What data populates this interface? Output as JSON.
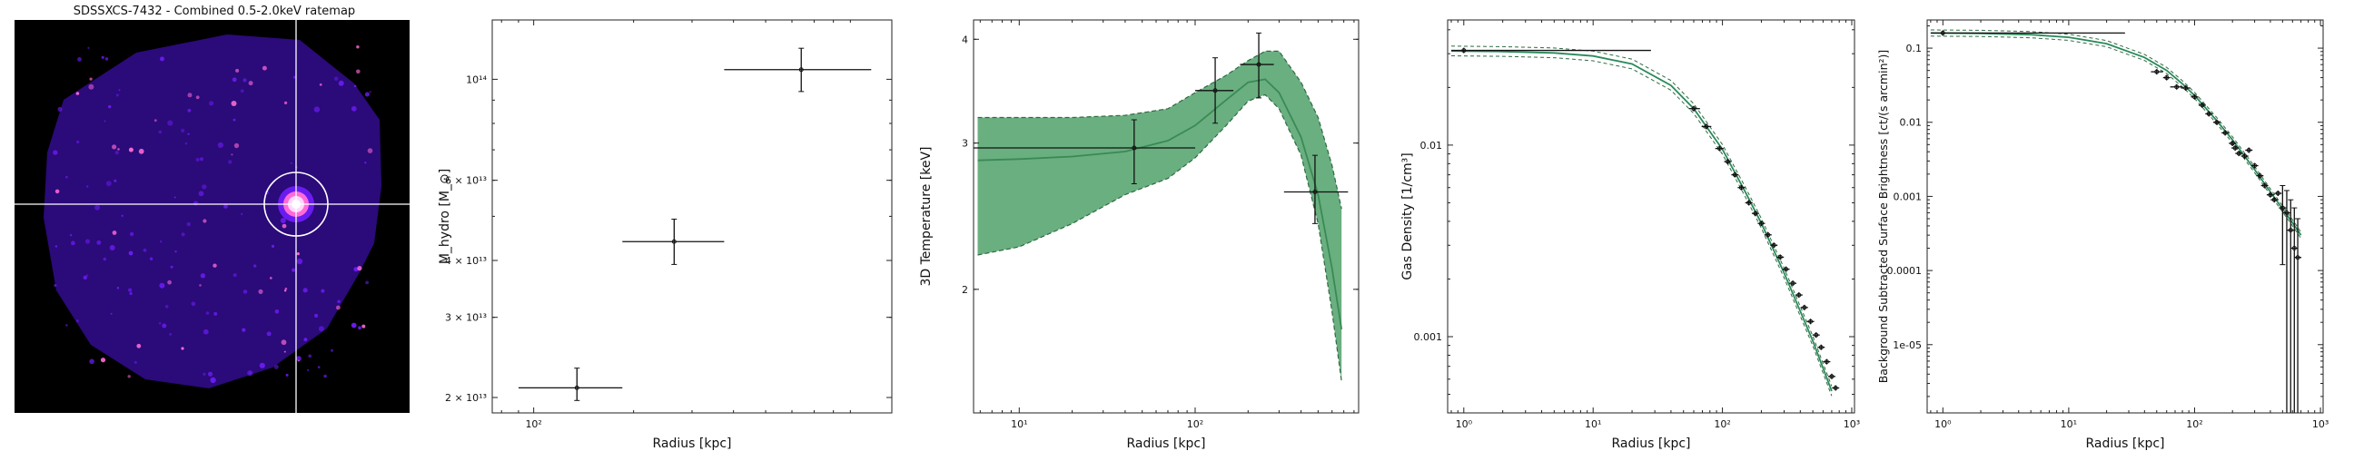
{
  "ratemap": {
    "title": "SDSSXCS-7432 - Combined 0.5-2.0keV ratemap",
    "colors": {
      "background": "#000000",
      "low": "#2b0a7a",
      "mid": "#6a1cf0",
      "high": "#ff6bd6",
      "peak": "#ffd7ff",
      "crosshair": "#ffffff"
    }
  },
  "chart_data": [
    {
      "type": "scatter",
      "xlabel": "Radius [kpc]",
      "ylabel": "M_hydro [M_⊙]",
      "xscale": "log",
      "yscale": "log",
      "xlim": [
        75,
        1200
      ],
      "ylim": [
        18500000000000,
        135000000000000
      ],
      "xticks": [
        {
          "v": 100,
          "label": "10²"
        }
      ],
      "yticks": [
        {
          "v": 20000000000000,
          "label": "2 × 10¹³"
        },
        {
          "v": 30000000000000,
          "label": "3 × 10¹³"
        },
        {
          "v": 40000000000000,
          "label": "4 × 10¹³"
        },
        {
          "v": 60000000000000,
          "label": "6 × 10¹³"
        },
        {
          "v": 100000000000000,
          "label": "10¹⁴"
        }
      ],
      "points": [
        {
          "x": 135,
          "xlo": 90,
          "xhi": 185,
          "y": 21000000000000,
          "ylo": 19700000000000,
          "yhi": 23200000000000
        },
        {
          "x": 265,
          "xlo": 185,
          "xhi": 375,
          "y": 44000000000000,
          "ylo": 39200000000000,
          "yhi": 49300000000000
        },
        {
          "x": 640,
          "xlo": 375,
          "xhi": 1040,
          "y": 105000000000000,
          "ylo": 94000000000000,
          "yhi": 117000000000000
        }
      ]
    },
    {
      "type": "line",
      "xlabel": "Radius [kpc]",
      "ylabel": "3D Temperature [keV]",
      "xscale": "log",
      "yscale": "log",
      "xlim": [
        5.5,
        850
      ],
      "ylim": [
        1.42,
        4.22
      ],
      "xticks": [
        {
          "v": 10,
          "label": "10¹"
        },
        {
          "v": 100,
          "label": "10²"
        }
      ],
      "yticks": [
        {
          "v": 2,
          "label": "2"
        },
        {
          "v": 3,
          "label": "3"
        },
        {
          "v": 4,
          "label": "4"
        }
      ],
      "colors": {
        "band": "#6aaf80",
        "band_edge": "#2f6a43",
        "model": "#3a8a55"
      },
      "model": {
        "x": [
          5.8,
          10,
          20,
          40,
          70,
          100,
          150,
          200,
          250,
          300,
          400,
          500,
          600,
          680
        ],
        "y": [
          2.86,
          2.87,
          2.89,
          2.93,
          3.02,
          3.15,
          3.38,
          3.55,
          3.58,
          3.45,
          3.05,
          2.6,
          2.12,
          1.79
        ],
        "lo": [
          2.2,
          2.25,
          2.4,
          2.6,
          2.72,
          2.88,
          3.15,
          3.37,
          3.43,
          3.3,
          2.9,
          2.4,
          1.88,
          1.55
        ],
        "hi": [
          3.22,
          3.22,
          3.22,
          3.24,
          3.3,
          3.45,
          3.62,
          3.77,
          3.87,
          3.87,
          3.55,
          3.22,
          2.82,
          2.5
        ]
      },
      "points": [
        {
          "x": 45,
          "xlo": 5.5,
          "xhi": 100,
          "y": 2.96,
          "ylo": 2.68,
          "yhi": 3.2
        },
        {
          "x": 130,
          "xlo": 100,
          "xhi": 165,
          "y": 3.47,
          "ylo": 3.17,
          "yhi": 3.8
        },
        {
          "x": 230,
          "xlo": 180,
          "xhi": 280,
          "y": 3.73,
          "ylo": 3.4,
          "yhi": 4.07
        },
        {
          "x": 480,
          "xlo": 320,
          "xhi": 740,
          "y": 2.62,
          "ylo": 2.4,
          "yhi": 2.9
        }
      ]
    },
    {
      "type": "line",
      "xlabel": "Radius [kpc]",
      "ylabel": "Gas Density [1/cm³]",
      "xscale": "log",
      "yscale": "log",
      "xlim": [
        0.75,
        1050
      ],
      "ylim": [
        0.0004,
        0.045
      ],
      "xticks": [
        {
          "v": 1,
          "label": "10⁰"
        },
        {
          "v": 10,
          "label": "10¹"
        },
        {
          "v": 100,
          "label": "10²"
        },
        {
          "v": 1000,
          "label": "10³"
        }
      ],
      "yticks": [
        {
          "v": 0.001,
          "label": "0.001"
        },
        {
          "v": 0.01,
          "label": "0.01"
        }
      ],
      "colors": {
        "model": "#2a8a5a",
        "band_edge": "#2f6a43"
      },
      "model": {
        "x": [
          0.8,
          2,
          5,
          10,
          20,
          40,
          60,
          100,
          150,
          200,
          300,
          500,
          700
        ],
        "y": [
          0.031,
          0.0308,
          0.0303,
          0.0292,
          0.0265,
          0.0205,
          0.0155,
          0.0095,
          0.0057,
          0.0039,
          0.00215,
          0.00095,
          0.00052
        ]
      },
      "points": [
        {
          "x": 1,
          "xlo": 0.8,
          "xhi": 28,
          "y": 0.0312
        },
        {
          "x": 60,
          "xlo": 55,
          "xhi": 67,
          "y": 0.0155
        },
        {
          "x": 75,
          "xlo": 69,
          "xhi": 82,
          "y": 0.0125
        },
        {
          "x": 95,
          "xlo": 88,
          "xhi": 102,
          "y": 0.0096
        },
        {
          "x": 110,
          "y": 0.0082
        },
        {
          "x": 125,
          "y": 0.007
        },
        {
          "x": 140,
          "y": 0.006
        },
        {
          "x": 160,
          "y": 0.005
        },
        {
          "x": 180,
          "y": 0.0044
        },
        {
          "x": 200,
          "y": 0.0039
        },
        {
          "x": 225,
          "y": 0.0034
        },
        {
          "x": 250,
          "y": 0.003
        },
        {
          "x": 280,
          "y": 0.0026
        },
        {
          "x": 310,
          "y": 0.00225
        },
        {
          "x": 350,
          "y": 0.0019
        },
        {
          "x": 390,
          "y": 0.00165
        },
        {
          "x": 430,
          "y": 0.00142
        },
        {
          "x": 480,
          "y": 0.0012
        },
        {
          "x": 530,
          "y": 0.00102
        },
        {
          "x": 580,
          "y": 0.00088
        },
        {
          "x": 640,
          "y": 0.00074
        },
        {
          "x": 700,
          "y": 0.00062
        },
        {
          "x": 750,
          "y": 0.00054
        }
      ]
    },
    {
      "type": "line",
      "xlabel": "Radius [kpc]",
      "ylabel": "Background Subtracted Surface Brightness [ct/(s arcmin²)]",
      "xscale": "log",
      "yscale": "log",
      "xlim": [
        0.75,
        1050
      ],
      "ylim": [
        1.2e-06,
        0.24
      ],
      "xticks": [
        {
          "v": 1,
          "label": "10⁰"
        },
        {
          "v": 10,
          "label": "10¹"
        },
        {
          "v": 100,
          "label": "10²"
        },
        {
          "v": 1000,
          "label": "10³"
        }
      ],
      "yticks": [
        {
          "v": 1e-05,
          "label": "1e-05"
        },
        {
          "v": 0.0001,
          "label": "0.0001"
        },
        {
          "v": 0.001,
          "label": "0.001"
        },
        {
          "v": 0.01,
          "label": "0.01"
        },
        {
          "v": 0.1,
          "label": "0.1"
        }
      ],
      "colors": {
        "model": "#2a8a5a"
      },
      "model": {
        "x": [
          0.8,
          2,
          5,
          10,
          20,
          40,
          60,
          80,
          100,
          150,
          200,
          300,
          400,
          500,
          600,
          700
        ],
        "y": [
          0.16,
          0.158,
          0.152,
          0.14,
          0.115,
          0.075,
          0.05,
          0.033,
          0.023,
          0.0105,
          0.0058,
          0.0023,
          0.00115,
          0.00068,
          0.00044,
          0.0003
        ]
      },
      "points": [
        {
          "x": 1,
          "xlo": 0.8,
          "xhi": 28,
          "y": 0.16
        },
        {
          "x": 50,
          "xlo": 45,
          "xhi": 56,
          "y": 0.048
        },
        {
          "x": 60,
          "y": 0.04
        },
        {
          "x": 72,
          "xlo": 64,
          "xhi": 80,
          "y": 0.03
        },
        {
          "x": 85,
          "xlo": 78,
          "xhi": 92,
          "y": 0.029
        },
        {
          "x": 100,
          "y": 0.022
        },
        {
          "x": 115,
          "y": 0.017
        },
        {
          "x": 130,
          "y": 0.013
        },
        {
          "x": 150,
          "y": 0.01
        },
        {
          "x": 175,
          "y": 0.0072
        },
        {
          "x": 200,
          "y": 0.0052
        },
        {
          "x": 210,
          "y": 0.0045
        },
        {
          "x": 225,
          "y": 0.0038
        },
        {
          "x": 250,
          "y": 0.0035
        },
        {
          "x": 270,
          "y": 0.0042
        },
        {
          "x": 300,
          "y": 0.0026
        },
        {
          "x": 330,
          "y": 0.0019
        },
        {
          "x": 360,
          "y": 0.0014
        },
        {
          "x": 400,
          "y": 0.00105
        },
        {
          "x": 430,
          "y": 0.0009
        },
        {
          "x": 460,
          "y": 0.0011
        },
        {
          "x": 500,
          "y": 0.0007,
          "ylo": 0.00012,
          "yhi": 0.0014
        },
        {
          "x": 540,
          "y": 0.0006,
          "ylo": 1.2e-06,
          "yhi": 0.0012
        },
        {
          "x": 580,
          "y": 0.00035,
          "ylo": 1.2e-06,
          "yhi": 0.0009
        },
        {
          "x": 620,
          "y": 0.0002,
          "ylo": 1.2e-06,
          "yhi": 0.0007
        },
        {
          "x": 660,
          "y": 0.00015,
          "ylo": 1.2e-06,
          "yhi": 0.0005
        }
      ]
    }
  ]
}
